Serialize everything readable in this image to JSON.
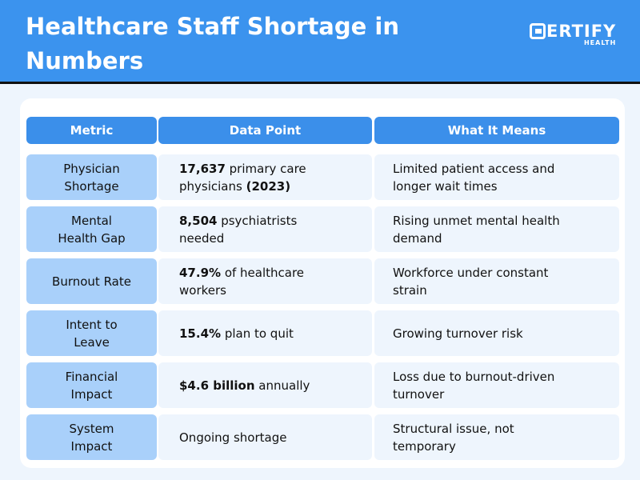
{
  "header": {
    "title": "Healthcare Staff Shortage in Numbers",
    "logo": {
      "text": "CERTIFY",
      "sub": "HEALTH"
    }
  },
  "table": {
    "columns": [
      "Metric",
      "Data Point",
      "What It Means"
    ],
    "rows": [
      {
        "metric": "Physician Shortage",
        "bold": "17,637",
        "data": " primary care physicians ",
        "bold2": "(2023)",
        "meaning": "Limited patient access and longer wait times"
      },
      {
        "metric": "Mental Health Gap",
        "bold": "8,504",
        "data": " psychiatrists needed",
        "bold2": "",
        "meaning": "Rising unmet mental health demand"
      },
      {
        "metric": "Burnout Rate",
        "bold": "47.9%",
        "data": " of healthcare workers",
        "bold2": "",
        "meaning": "Workforce under constant strain"
      },
      {
        "metric": "Intent to Leave",
        "bold": "15.4%",
        "data": " plan to quit",
        "bold2": "",
        "meaning": "Growing turnover risk"
      },
      {
        "metric": "Financial Impact",
        "bold": "$4.6 billion",
        "data": " annually",
        "bold2": "",
        "meaning": "Loss due to burnout-driven turnover"
      },
      {
        "metric": "System Impact",
        "bold": "",
        "data": "Ongoing shortage",
        "bold2": "",
        "meaning": "Structural issue, not temporary"
      }
    ]
  },
  "colors": {
    "header": "#3b93ee",
    "metric_cell": "#a9d0fa",
    "cell": "#eef5fd"
  }
}
